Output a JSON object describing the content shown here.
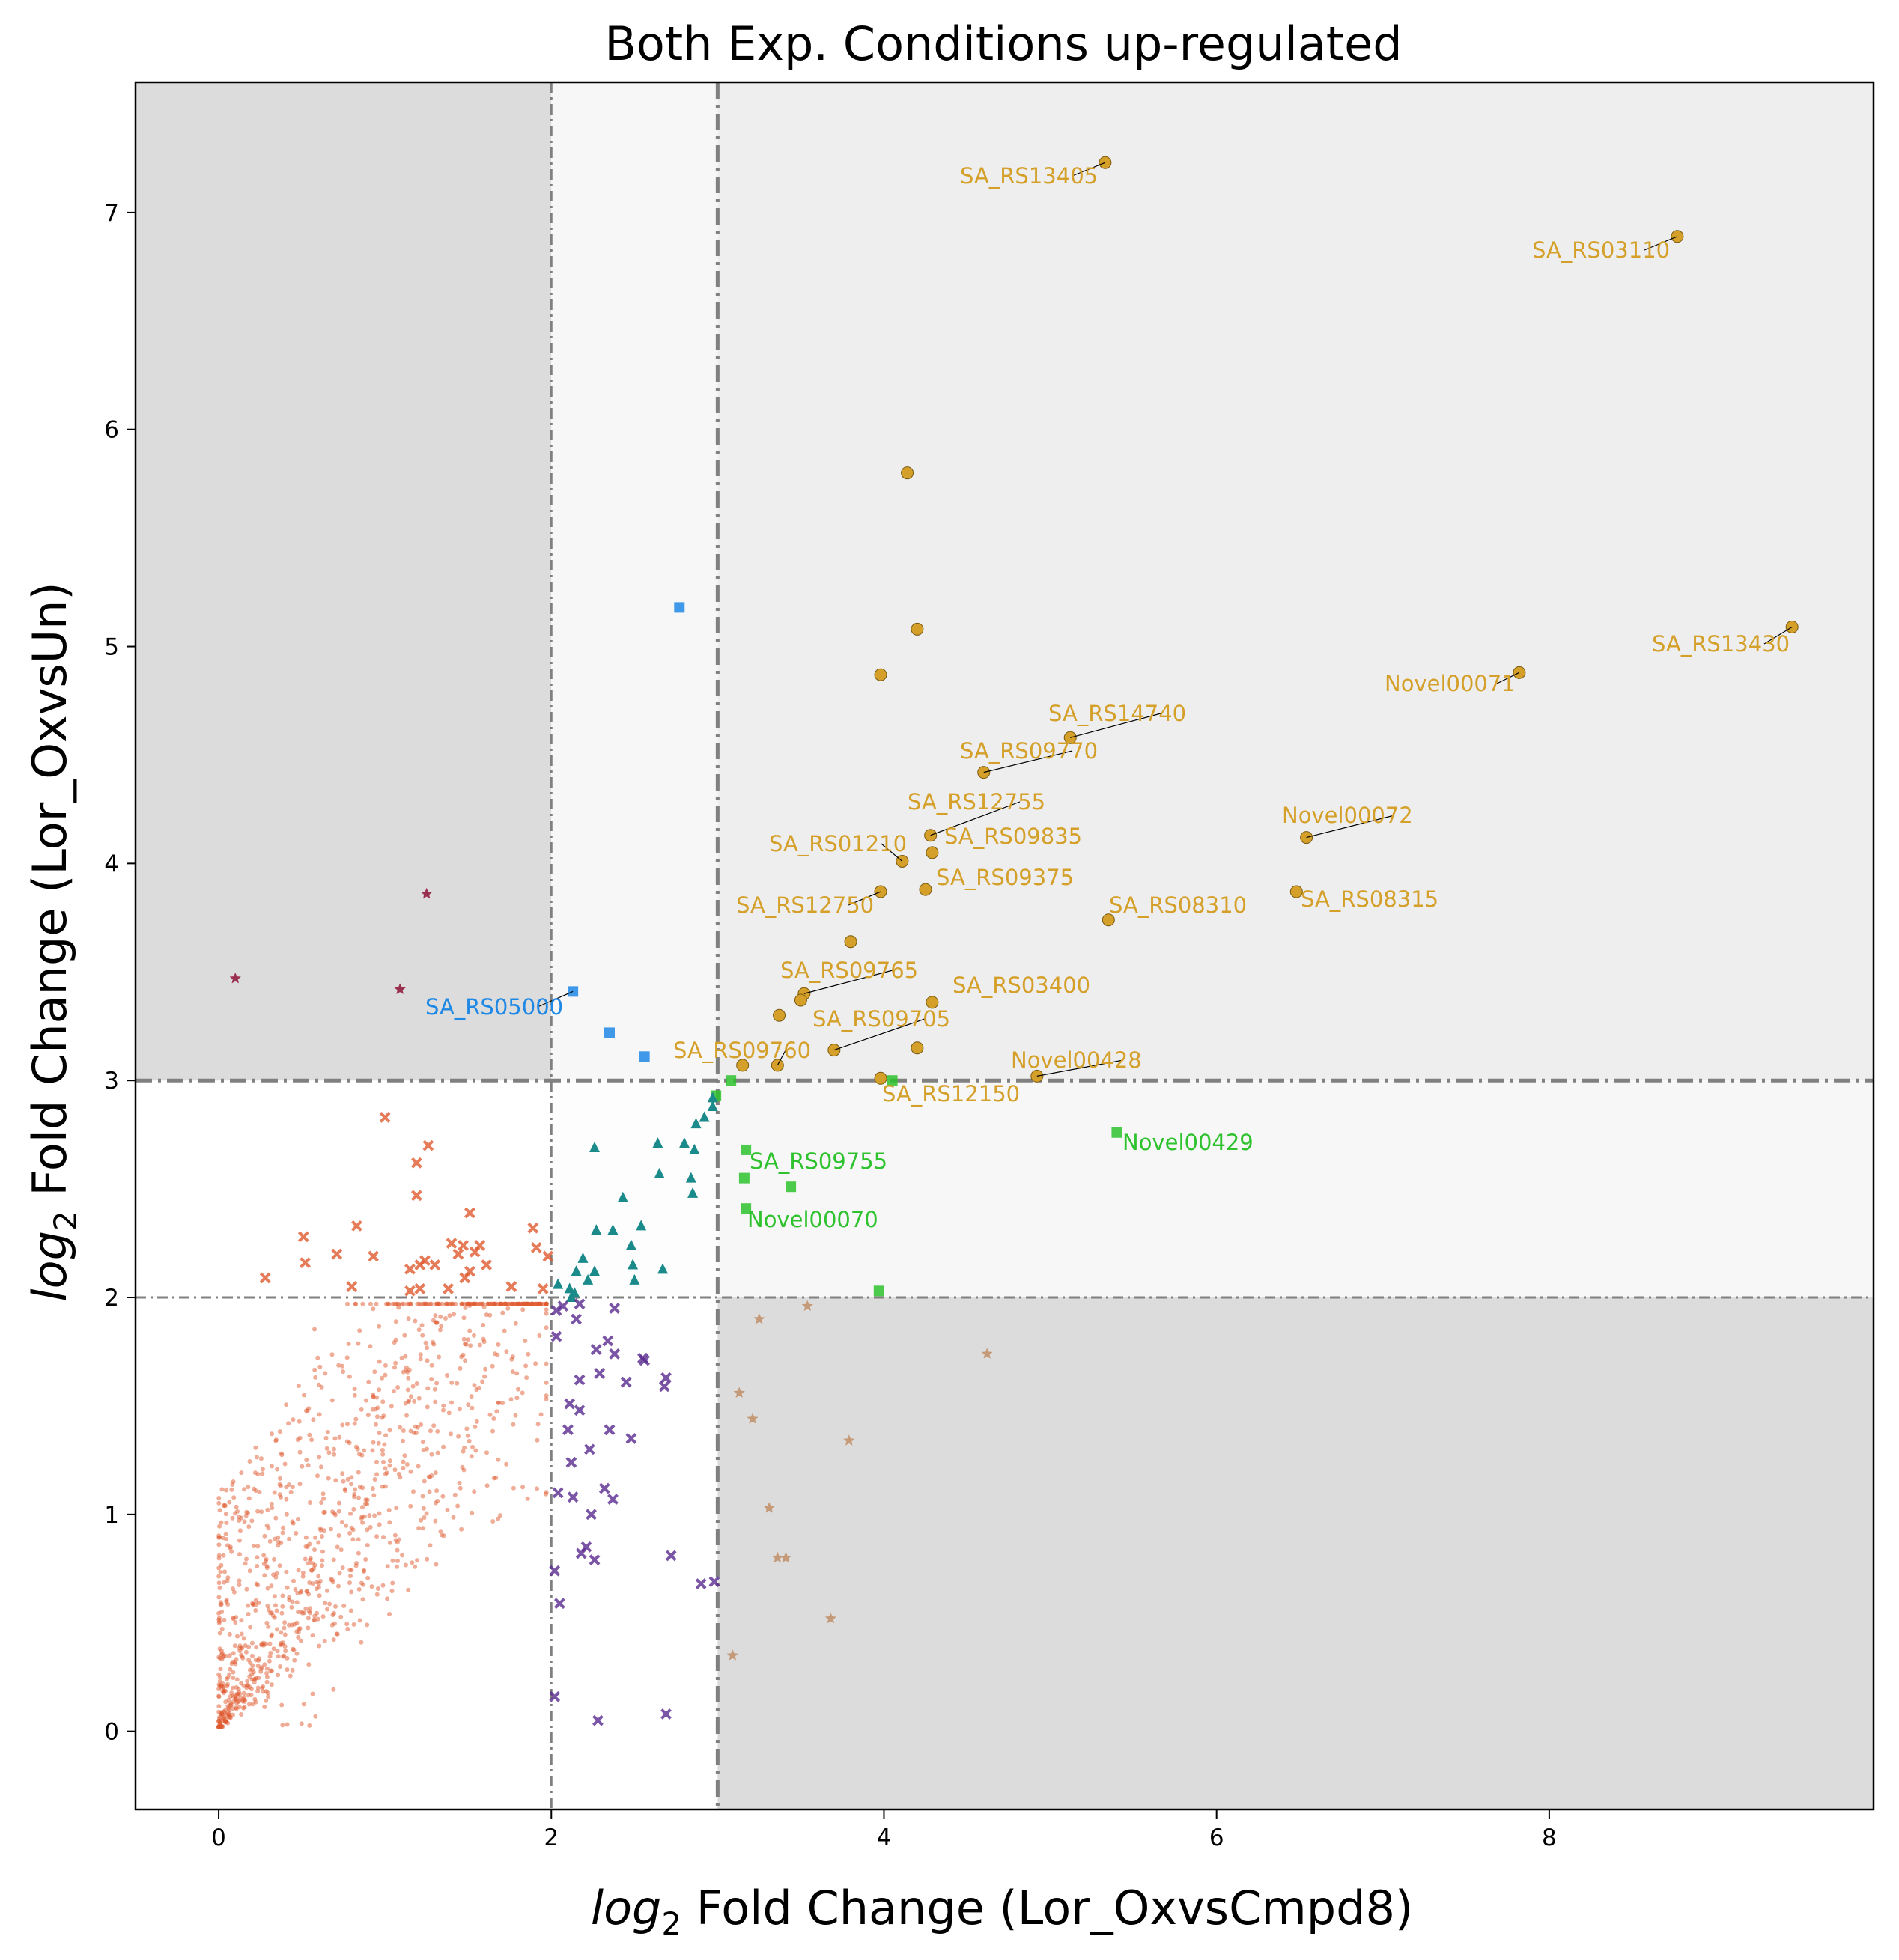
{
  "chart_data": {
    "type": "scatter",
    "title": "Both Exp. Conditions up-regulated",
    "xlabel_math": "log",
    "xlabel_sub": "2",
    "xlabel_text": " Fold Change (Lor_OxvsCmpd8)",
    "ylabel_math": "log",
    "ylabel_sub": "2",
    "ylabel_text": " Fold Change (Lor_OxvsUn)",
    "xlim": [
      -0.5,
      9.95
    ],
    "ylim": [
      -0.36,
      7.6
    ],
    "xticks": [
      0,
      2,
      4,
      6,
      8
    ],
    "yticks": [
      0,
      1,
      2,
      3,
      4,
      5,
      6,
      7
    ],
    "thresholds": {
      "x_low": 2,
      "x_high": 3,
      "y_low": 2,
      "y_high": 3
    },
    "grid": false,
    "colors": {
      "background_dark": "#dcdcdc",
      "background_mid": "#eeeeee",
      "background_light": "#f7f7f7",
      "threshold_line": "#808080",
      "gold": "#d4a02a",
      "blue": "#1e88e5",
      "green": "#2ec22e",
      "teal": "#1a8a8a",
      "purple": "#5a2a8e",
      "orange": "#e05a30",
      "maroon": "#9a3050",
      "tan": "#c49a78"
    },
    "series": [
      {
        "group": "both-up",
        "marker": "circle",
        "color": "#d4a02a",
        "points": [
          [
            5.33,
            7.23
          ],
          [
            8.77,
            6.89
          ],
          [
            9.46,
            5.09
          ],
          [
            7.82,
            4.88
          ],
          [
            4.14,
            5.8
          ],
          [
            4.2,
            5.08
          ],
          [
            3.98,
            4.87
          ],
          [
            5.12,
            4.58
          ],
          [
            4.6,
            4.42
          ],
          [
            4.28,
            4.13
          ],
          [
            4.29,
            4.05
          ],
          [
            4.11,
            4.01
          ],
          [
            6.54,
            4.12
          ],
          [
            6.48,
            3.87
          ],
          [
            3.98,
            3.87
          ],
          [
            4.25,
            3.88
          ],
          [
            5.35,
            3.74
          ],
          [
            3.8,
            3.64
          ],
          [
            3.52,
            3.4
          ],
          [
            3.5,
            3.37
          ],
          [
            4.29,
            3.36
          ],
          [
            3.37,
            3.3
          ],
          [
            3.7,
            3.14
          ],
          [
            4.2,
            3.15
          ],
          [
            3.15,
            3.07
          ],
          [
            3.36,
            3.07
          ],
          [
            3.98,
            3.01
          ],
          [
            4.92,
            3.02
          ]
        ]
      },
      {
        "group": "lorun-only",
        "marker": "square",
        "color": "#1e88e5",
        "points": [
          [
            2.77,
            5.18
          ],
          [
            2.13,
            3.41
          ],
          [
            2.35,
            3.22
          ],
          [
            2.56,
            3.11
          ]
        ]
      },
      {
        "group": "cmpd8-only",
        "marker": "square",
        "color": "#2ec22e",
        "points": [
          [
            3.08,
            3.0
          ],
          [
            2.99,
            2.93
          ],
          [
            3.17,
            2.68
          ],
          [
            5.4,
            2.76
          ],
          [
            3.16,
            2.55
          ],
          [
            3.44,
            2.51
          ],
          [
            3.17,
            2.41
          ],
          [
            3.97,
            2.03
          ],
          [
            4.05,
            3.0
          ]
        ]
      },
      {
        "group": "mid",
        "marker": "triangle",
        "color": "#1a8a8a",
        "points": [
          [
            2.97,
            2.88
          ],
          [
            2.92,
            2.83
          ],
          [
            2.87,
            2.8
          ],
          [
            2.97,
            2.92
          ],
          [
            2.26,
            2.69
          ],
          [
            2.64,
            2.71
          ],
          [
            2.8,
            2.71
          ],
          [
            2.86,
            2.68
          ],
          [
            2.65,
            2.57
          ],
          [
            2.84,
            2.55
          ],
          [
            2.43,
            2.46
          ],
          [
            2.85,
            2.48
          ],
          [
            2.27,
            2.31
          ],
          [
            2.37,
            2.31
          ],
          [
            2.54,
            2.33
          ],
          [
            2.48,
            2.24
          ],
          [
            2.19,
            2.18
          ],
          [
            2.15,
            2.12
          ],
          [
            2.26,
            2.12
          ],
          [
            2.49,
            2.15
          ],
          [
            2.67,
            2.13
          ],
          [
            2.22,
            2.08
          ],
          [
            2.5,
            2.08
          ],
          [
            2.04,
            2.06
          ],
          [
            2.11,
            2.04
          ],
          [
            2.14,
            2.02
          ],
          [
            2.12,
            2.0
          ]
        ]
      },
      {
        "group": "cmpd8-moderate",
        "marker": "x",
        "color": "#5a2a8e",
        "points": [
          [
            2.03,
            1.94
          ],
          [
            2.07,
            1.96
          ],
          [
            2.17,
            1.97
          ],
          [
            2.38,
            1.95
          ],
          [
            2.03,
            1.82
          ],
          [
            2.15,
            1.9
          ],
          [
            2.34,
            1.8
          ],
          [
            2.27,
            1.76
          ],
          [
            2.38,
            1.74
          ],
          [
            2.55,
            1.72
          ],
          [
            2.56,
            1.71
          ],
          [
            2.17,
            1.62
          ],
          [
            2.29,
            1.65
          ],
          [
            2.45,
            1.61
          ],
          [
            2.69,
            1.63
          ],
          [
            2.68,
            1.59
          ],
          [
            2.11,
            1.51
          ],
          [
            2.17,
            1.48
          ],
          [
            2.1,
            1.39
          ],
          [
            2.35,
            1.39
          ],
          [
            2.48,
            1.35
          ],
          [
            2.12,
            1.24
          ],
          [
            2.23,
            1.3
          ],
          [
            2.04,
            1.1
          ],
          [
            2.13,
            1.08
          ],
          [
            2.32,
            1.12
          ],
          [
            2.37,
            1.07
          ],
          [
            2.24,
            1.0
          ],
          [
            2.21,
            0.85
          ],
          [
            2.26,
            0.79
          ],
          [
            2.18,
            0.82
          ],
          [
            2.72,
            0.81
          ],
          [
            2.9,
            0.68
          ],
          [
            2.98,
            0.69
          ],
          [
            2.02,
            0.74
          ],
          [
            2.05,
            0.59
          ],
          [
            2.02,
            0.16
          ],
          [
            2.28,
            0.05
          ],
          [
            2.69,
            0.08
          ]
        ]
      },
      {
        "group": "lorun-moderate",
        "marker": "x",
        "color": "#e05a30",
        "points": [
          [
            1.0,
            2.83
          ],
          [
            1.26,
            2.7
          ],
          [
            1.19,
            2.62
          ],
          [
            1.19,
            2.47
          ],
          [
            1.51,
            2.39
          ],
          [
            1.89,
            2.32
          ],
          [
            0.83,
            2.33
          ],
          [
            0.51,
            2.28
          ],
          [
            0.71,
            2.2
          ],
          [
            1.91,
            2.23
          ],
          [
            1.4,
            2.25
          ],
          [
            1.47,
            2.24
          ],
          [
            1.57,
            2.24
          ],
          [
            1.54,
            2.21
          ],
          [
            1.44,
            2.2
          ],
          [
            1.98,
            2.19
          ],
          [
            0.52,
            2.16
          ],
          [
            0.93,
            2.19
          ],
          [
            1.24,
            2.17
          ],
          [
            1.61,
            2.15
          ],
          [
            1.21,
            2.15
          ],
          [
            1.3,
            2.15
          ],
          [
            1.15,
            2.13
          ],
          [
            0.28,
            2.09
          ],
          [
            0.8,
            2.05
          ],
          [
            1.76,
            2.05
          ],
          [
            1.95,
            2.04
          ],
          [
            1.21,
            2.04
          ],
          [
            1.38,
            2.04
          ],
          [
            1.15,
            2.03
          ],
          [
            1.51,
            2.12
          ],
          [
            1.48,
            2.09
          ]
        ]
      },
      {
        "group": "lorun-high-cmpd8-low",
        "marker": "star",
        "color": "#9a3050",
        "points": [
          [
            1.25,
            3.86
          ],
          [
            0.1,
            3.47
          ],
          [
            1.09,
            3.42
          ]
        ]
      },
      {
        "group": "cmpd8-high-lorun-low",
        "marker": "star",
        "color": "#c49a78",
        "points": [
          [
            3.25,
            1.9
          ],
          [
            3.54,
            1.96
          ],
          [
            4.62,
            1.74
          ],
          [
            3.13,
            1.56
          ],
          [
            3.21,
            1.44
          ],
          [
            3.79,
            1.34
          ],
          [
            3.31,
            1.03
          ],
          [
            3.36,
            0.8
          ],
          [
            3.41,
            0.8
          ],
          [
            3.68,
            0.52
          ],
          [
            3.09,
            0.35
          ]
        ]
      }
    ],
    "annotations": [
      {
        "label": "SA_RS13405",
        "point": [
          5.33,
          7.23
        ],
        "color": "#d4a02a"
      },
      {
        "label": "SA_RS03110",
        "point": [
          8.77,
          6.89
        ],
        "color": "#d4a02a"
      },
      {
        "label": "SA_RS13430",
        "point": [
          9.46,
          5.09
        ],
        "color": "#d4a02a"
      },
      {
        "label": "Novel00071",
        "point": [
          7.82,
          4.88
        ],
        "color": "#d4a02a"
      },
      {
        "label": "SA_RS14740",
        "point": [
          5.12,
          4.58
        ],
        "color": "#d4a02a"
      },
      {
        "label": "SA_RS09770",
        "point": [
          4.6,
          4.42
        ],
        "color": "#d4a02a"
      },
      {
        "label": "SA_RS12755",
        "point": [
          4.28,
          4.13
        ],
        "color": "#d4a02a"
      },
      {
        "label": "SA_RS09835",
        "point": [
          4.29,
          4.05
        ],
        "color": "#d4a02a"
      },
      {
        "label": "SA_RS01210",
        "point": [
          4.11,
          4.01
        ],
        "color": "#d4a02a"
      },
      {
        "label": "Novel00072",
        "point": [
          6.54,
          4.12
        ],
        "color": "#d4a02a"
      },
      {
        "label": "SA_RS09375",
        "point": [
          4.25,
          3.88
        ],
        "color": "#d4a02a"
      },
      {
        "label": "SA_RS12750",
        "point": [
          3.98,
          3.87
        ],
        "color": "#d4a02a"
      },
      {
        "label": "SA_RS08310",
        "point": [
          5.35,
          3.74
        ],
        "color": "#d4a02a"
      },
      {
        "label": "SA_RS08315",
        "point": [
          6.48,
          3.87
        ],
        "color": "#d4a02a"
      },
      {
        "label": "SA_RS09765",
        "point": [
          3.52,
          3.4
        ],
        "color": "#d4a02a"
      },
      {
        "label": "SA_RS03400",
        "point": [
          4.29,
          3.36
        ],
        "color": "#d4a02a"
      },
      {
        "label": "SA_RS09705",
        "point": [
          3.7,
          3.14
        ],
        "color": "#d4a02a"
      },
      {
        "label": "SA_RS09760",
        "point": [
          3.36,
          3.07
        ],
        "color": "#d4a02a"
      },
      {
        "label": "Novel00428",
        "point": [
          4.92,
          3.02
        ],
        "color": "#d4a02a"
      },
      {
        "label": "SA_RS12150",
        "point": [
          3.98,
          3.01
        ],
        "color": "#d4a02a"
      },
      {
        "label": "SA_RS05000",
        "point": [
          2.13,
          3.41
        ],
        "color": "#1e88e5"
      },
      {
        "label": "SA_RS09755",
        "point": [
          3.17,
          2.68
        ],
        "color": "#2ec22e"
      },
      {
        "label": "Novel00429",
        "point": [
          5.4,
          2.76
        ],
        "color": "#2ec22e"
      },
      {
        "label": "Novel00070",
        "point": [
          3.17,
          2.41
        ],
        "color": "#2ec22e"
      }
    ]
  }
}
